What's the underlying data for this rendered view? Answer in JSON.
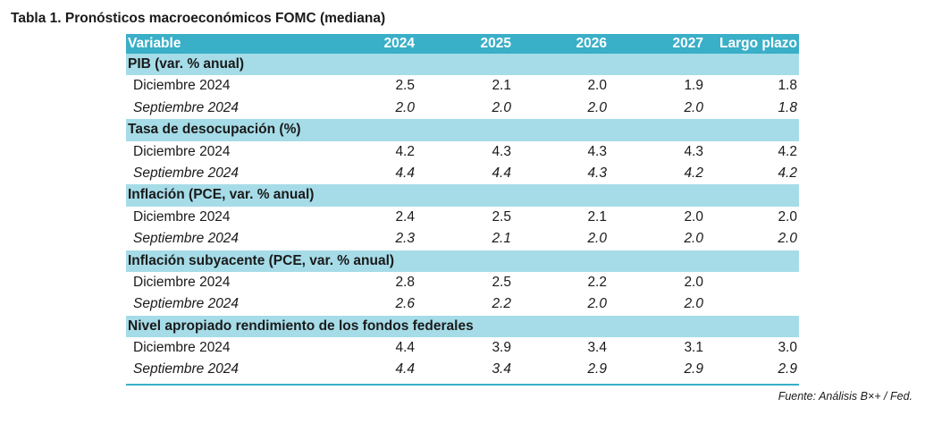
{
  "title": "Tabla 1. Pronósticos macroeconómicos FOMC (mediana)",
  "header": {
    "variable": "Variable",
    "cols": [
      "2024",
      "2025",
      "2026",
      "2027",
      "Largo plazo"
    ]
  },
  "sections": [
    {
      "name": "PIB (var. % anual)",
      "rows": [
        {
          "label": "Diciembre 2024",
          "values": [
            "2.5",
            "2.1",
            "2.0",
            "1.9",
            "1.8"
          ]
        },
        {
          "label": "Septiembre 2024",
          "values": [
            "2.0",
            "2.0",
            "2.0",
            "2.0",
            "1.8"
          ]
        }
      ]
    },
    {
      "name": "Tasa de desocupación (%)",
      "rows": [
        {
          "label": "Diciembre 2024",
          "values": [
            "4.2",
            "4.3",
            "4.3",
            "4.3",
            "4.2"
          ]
        },
        {
          "label": "Septiembre 2024",
          "values": [
            "4.4",
            "4.4",
            "4.3",
            "4.2",
            "4.2"
          ]
        }
      ]
    },
    {
      "name": "Inflación (PCE, var. % anual)",
      "rows": [
        {
          "label": "Diciembre 2024",
          "values": [
            "2.4",
            "2.5",
            "2.1",
            "2.0",
            "2.0"
          ]
        },
        {
          "label": "Septiembre 2024",
          "values": [
            "2.3",
            "2.1",
            "2.0",
            "2.0",
            "2.0"
          ]
        }
      ]
    },
    {
      "name": "Inflación subyacente (PCE, var. % anual)",
      "rows": [
        {
          "label": "Diciembre 2024",
          "values": [
            "2.8",
            "2.5",
            "2.2",
            "2.0",
            ""
          ]
        },
        {
          "label": "Septiembre 2024",
          "values": [
            "2.6",
            "2.2",
            "2.0",
            "2.0",
            ""
          ]
        }
      ]
    },
    {
      "name": "Nivel apropiado rendimiento de los fondos federales",
      "rows": [
        {
          "label": "Diciembre 2024",
          "values": [
            "4.4",
            "3.9",
            "3.4",
            "3.1",
            "3.0"
          ]
        },
        {
          "label": "Septiembre 2024",
          "values": [
            "4.4",
            "3.4",
            "2.9",
            "2.9",
            "2.9"
          ]
        }
      ]
    }
  ],
  "source": "Fuente: Análisis B×+ /  Fed.",
  "colors": {
    "header_bg": "#3aafc8",
    "section_bg": "#a6dce8",
    "header_text": "#ffffff"
  }
}
